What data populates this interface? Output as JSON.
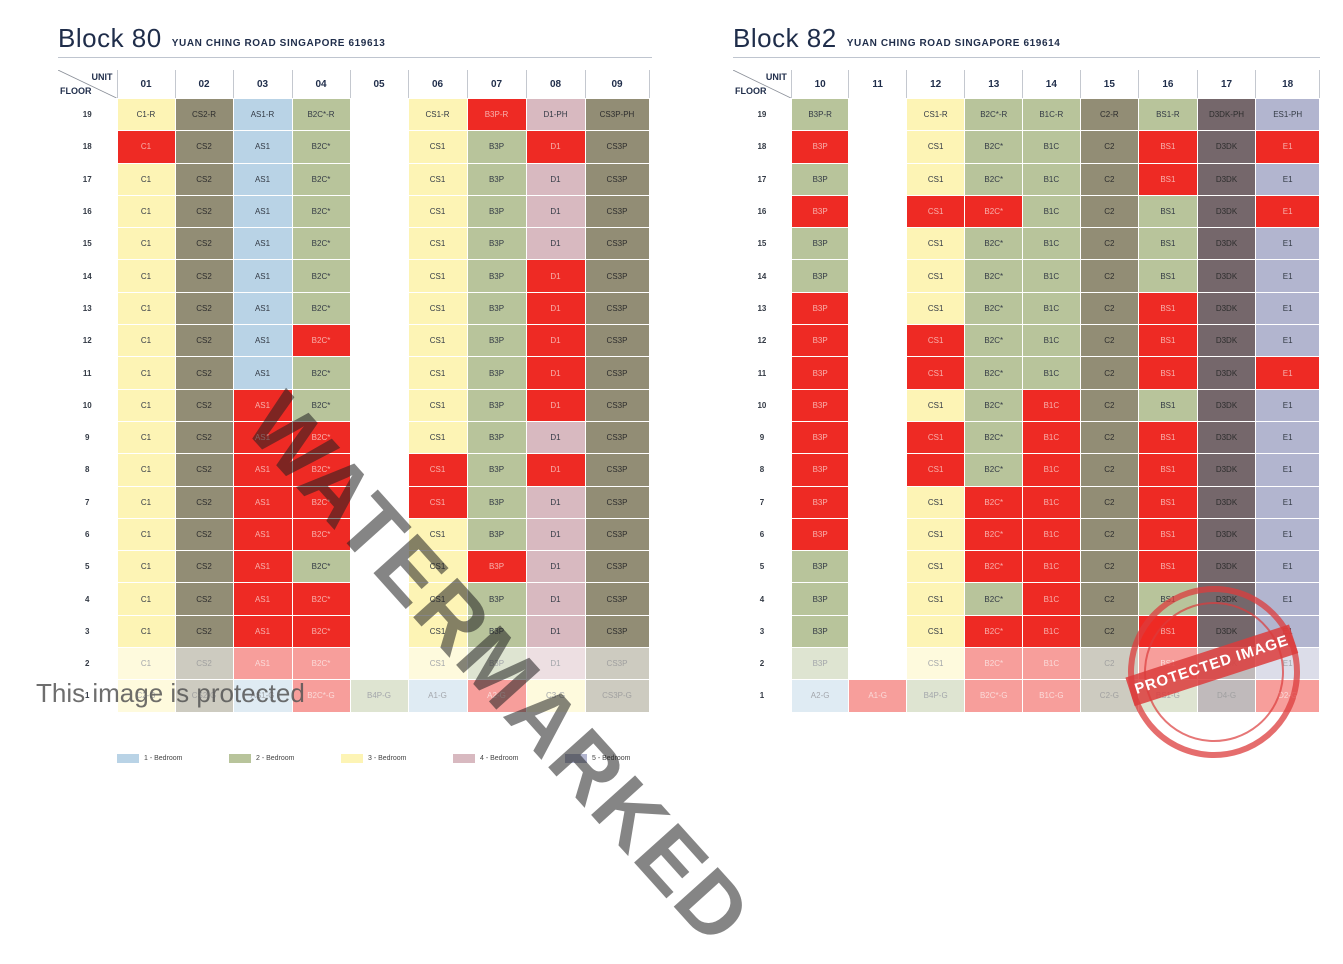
{
  "header_labels": {
    "unit": "UNIT",
    "floor": "FLOOR"
  },
  "protected_text": "This image is protected",
  "watermark_text": "WATERMARKED",
  "stamp_text": "PROTECTED IMAGE",
  "colors": {
    "A": "#b9d3e6",
    "B": "#b8c49b",
    "C": "#fdf4b5",
    "D": "#d8b9c0",
    "E": "#b2b5cf",
    "S": "#928d75",
    "K": "#75676b",
    "R": "#ee2a24",
    "W": "#ffffff"
  },
  "legend": [
    {
      "label": "1 - Bedroom",
      "color": "#b9d3e6"
    },
    {
      "label": "2 - Bedroom",
      "color": "#b8c49b"
    },
    {
      "label": "3 - Bedroom",
      "color": "#fdf4b5"
    },
    {
      "label": "4 - Bedroom",
      "color": "#d8b9c0"
    },
    {
      "label": "5 - Bedroom",
      "color": "#b2b5cf"
    }
  ],
  "blocks": [
    {
      "name": "Block 80",
      "address": "YUAN CHING ROAD SINGAPORE 619613",
      "units": [
        "01",
        "02",
        "03",
        "04",
        "05",
        "06",
        "07",
        "08",
        "09"
      ],
      "floors": [
        "19",
        "18",
        "17",
        "16",
        "15",
        "14",
        "13",
        "12",
        "11",
        "10",
        "9",
        "8",
        "7",
        "6",
        "5",
        "4",
        "3",
        "2",
        "1"
      ],
      "grid": [
        [
          "C1-R|C",
          "CS2-R|S",
          "AS1-R|A",
          "B2C*-R|B",
          "|W",
          "CS1-R|C",
          "B3P-R|R",
          "D1-PH|D",
          "CS3P-PH|S"
        ],
        [
          "C1|R",
          "CS2|S",
          "AS1|A",
          "B2C*|B",
          "|W",
          "CS1|C",
          "B3P|B",
          "D1|R",
          "CS3P|S"
        ],
        [
          "C1|C",
          "CS2|S",
          "AS1|A",
          "B2C*|B",
          "|W",
          "CS1|C",
          "B3P|B",
          "D1|D",
          "CS3P|S"
        ],
        [
          "C1|C",
          "CS2|S",
          "AS1|A",
          "B2C*|B",
          "|W",
          "CS1|C",
          "B3P|B",
          "D1|D",
          "CS3P|S"
        ],
        [
          "C1|C",
          "CS2|S",
          "AS1|A",
          "B2C*|B",
          "|W",
          "CS1|C",
          "B3P|B",
          "D1|D",
          "CS3P|S"
        ],
        [
          "C1|C",
          "CS2|S",
          "AS1|A",
          "B2C*|B",
          "|W",
          "CS1|C",
          "B3P|B",
          "D1|R",
          "CS3P|S"
        ],
        [
          "C1|C",
          "CS2|S",
          "AS1|A",
          "B2C*|B",
          "|W",
          "CS1|C",
          "B3P|B",
          "D1|R",
          "CS3P|S"
        ],
        [
          "C1|C",
          "CS2|S",
          "AS1|A",
          "B2C*|R",
          "|W",
          "CS1|C",
          "B3P|B",
          "D1|R",
          "CS3P|S"
        ],
        [
          "C1|C",
          "CS2|S",
          "AS1|A",
          "B2C*|B",
          "|W",
          "CS1|C",
          "B3P|B",
          "D1|R",
          "CS3P|S"
        ],
        [
          "C1|C",
          "CS2|S",
          "AS1|R",
          "B2C*|B",
          "|W",
          "CS1|C",
          "B3P|B",
          "D1|R",
          "CS3P|S"
        ],
        [
          "C1|C",
          "CS2|S",
          "AS1|R",
          "B2C*|R",
          "|W",
          "CS1|C",
          "B3P|B",
          "D1|D",
          "CS3P|S"
        ],
        [
          "C1|C",
          "CS2|S",
          "AS1|R",
          "B2C*|R",
          "|W",
          "CS1|R",
          "B3P|B",
          "D1|R",
          "CS3P|S"
        ],
        [
          "C1|C",
          "CS2|S",
          "AS1|R",
          "B2C*|R",
          "|W",
          "CS1|R",
          "B3P|B",
          "D1|D",
          "CS3P|S"
        ],
        [
          "C1|C",
          "CS2|S",
          "AS1|R",
          "B2C*|R",
          "|W",
          "CS1|C",
          "B3P|B",
          "D1|D",
          "CS3P|S"
        ],
        [
          "C1|C",
          "CS2|S",
          "AS1|R",
          "B2C*|B",
          "|W",
          "CS1|C",
          "B3P|R",
          "D1|D",
          "CS3P|S"
        ],
        [
          "C1|C",
          "CS2|S",
          "AS1|R",
          "B2C*|R",
          "|W",
          "CS1|C",
          "B3P|B",
          "D1|D",
          "CS3P|S"
        ],
        [
          "C1|C",
          "CS2|S",
          "AS1|R",
          "B2C*|R",
          "|W",
          "CS1|C",
          "B3P|B",
          "D1|D",
          "CS3P|S"
        ],
        [
          "C1|C",
          "CS2|S",
          "AS1|R",
          "B2C*|R",
          "|W",
          "CS1|C",
          "B3P|B",
          "D1|D",
          "CS3P|S"
        ],
        [
          "C2-G|C",
          "CS2-G|S",
          "AS1-G|A",
          "B2C*-G|R",
          "B4P-G|B",
          "A1-G|A",
          "A2-G|R",
          "C3-G|C",
          "CS3P-G|S"
        ]
      ]
    },
    {
      "name": "Block 82",
      "address": "YUAN CHING ROAD SINGAPORE 619614",
      "units": [
        "10",
        "11",
        "12",
        "13",
        "14",
        "15",
        "16",
        "17",
        "18"
      ],
      "floors": [
        "19",
        "18",
        "17",
        "16",
        "15",
        "14",
        "13",
        "12",
        "11",
        "10",
        "9",
        "8",
        "7",
        "6",
        "5",
        "4",
        "3",
        "2",
        "1"
      ],
      "grid": [
        [
          "B3P-R|B",
          "|W",
          "CS1-R|C",
          "B2C*-R|B",
          "B1C-R|B",
          "C2-R|S",
          "BS1-R|B",
          "D3DK-PH|K",
          "ES1-PH|E"
        ],
        [
          "B3P|R",
          "|W",
          "CS1|C",
          "B2C*|B",
          "B1C|B",
          "C2|S",
          "BS1|R",
          "D3DK|K",
          "E1|R"
        ],
        [
          "B3P|B",
          "|W",
          "CS1|C",
          "B2C*|B",
          "B1C|B",
          "C2|S",
          "BS1|R",
          "D3DK|K",
          "E1|E"
        ],
        [
          "B3P|R",
          "|W",
          "CS1|R",
          "B2C*|R",
          "B1C|B",
          "C2|S",
          "BS1|B",
          "D3DK|K",
          "E1|R"
        ],
        [
          "B3P|B",
          "|W",
          "CS1|C",
          "B2C*|B",
          "B1C|B",
          "C2|S",
          "BS1|B",
          "D3DK|K",
          "E1|E"
        ],
        [
          "B3P|B",
          "|W",
          "CS1|C",
          "B2C*|B",
          "B1C|B",
          "C2|S",
          "BS1|B",
          "D3DK|K",
          "E1|E"
        ],
        [
          "B3P|R",
          "|W",
          "CS1|C",
          "B2C*|B",
          "B1C|B",
          "C2|S",
          "BS1|R",
          "D3DK|K",
          "E1|E"
        ],
        [
          "B3P|R",
          "|W",
          "CS1|R",
          "B2C*|B",
          "B1C|B",
          "C2|S",
          "BS1|R",
          "D3DK|K",
          "E1|E"
        ],
        [
          "B3P|R",
          "|W",
          "CS1|R",
          "B2C*|B",
          "B1C|B",
          "C2|S",
          "BS1|R",
          "D3DK|K",
          "E1|R"
        ],
        [
          "B3P|R",
          "|W",
          "CS1|C",
          "B2C*|B",
          "B1C|R",
          "C2|S",
          "BS1|B",
          "D3DK|K",
          "E1|E"
        ],
        [
          "B3P|R",
          "|W",
          "CS1|R",
          "B2C*|B",
          "B1C|R",
          "C2|S",
          "BS1|R",
          "D3DK|K",
          "E1|E"
        ],
        [
          "B3P|R",
          "|W",
          "CS1|R",
          "B2C*|B",
          "B1C|R",
          "C2|S",
          "BS1|R",
          "D3DK|K",
          "E1|E"
        ],
        [
          "B3P|R",
          "|W",
          "CS1|C",
          "B2C*|R",
          "B1C|R",
          "C2|S",
          "BS1|R",
          "D3DK|K",
          "E1|E"
        ],
        [
          "B3P|R",
          "|W",
          "CS1|C",
          "B2C*|R",
          "B1C|R",
          "C2|S",
          "BS1|R",
          "D3DK|K",
          "E1|E"
        ],
        [
          "B3P|B",
          "|W",
          "CS1|C",
          "B2C*|R",
          "B1C|R",
          "C2|S",
          "BS1|R",
          "D3DK|K",
          "E1|E"
        ],
        [
          "B3P|B",
          "|W",
          "CS1|C",
          "B2C*|B",
          "B1C|R",
          "C2|S",
          "BS1|B",
          "D3DK|K",
          "E1|E"
        ],
        [
          "B3P|B",
          "|W",
          "CS1|C",
          "B2C*|R",
          "B1C|R",
          "C2|S",
          "BS1|R",
          "D3DK|K",
          "E1|E"
        ],
        [
          "B3P|B",
          "|W",
          "CS1|C",
          "B2C*|R",
          "B1C|R",
          "C2|S",
          "BS1|R",
          "D3DK|K",
          "E1|E"
        ],
        [
          "A2-G|A",
          "A1-G|R",
          "B4P-G|B",
          "B2C*-G|R",
          "B1C-G|R",
          "C2-G|S",
          "BS1-G|B",
          "D4-G|K",
          "D2-G|R"
        ]
      ]
    }
  ]
}
